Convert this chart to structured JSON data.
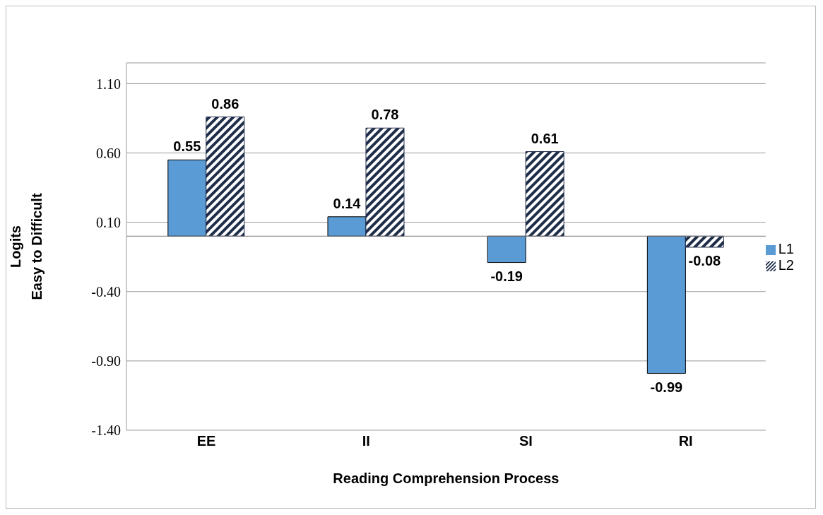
{
  "chart_data": {
    "type": "bar",
    "xlabel": "Reading Comprehension Process",
    "ylabel": "Logits\nEasy to Difficult",
    "categories": [
      "EE",
      "II",
      "SI",
      "RI"
    ],
    "series": [
      {
        "name": "L1",
        "color": "#5b9bd5",
        "values": [
          0.55,
          0.14,
          -0.19,
          -0.99
        ]
      },
      {
        "name": "L2",
        "color": "#1f2d4a",
        "values": [
          0.86,
          0.78,
          0.61,
          -0.08
        ]
      }
    ],
    "ylim": [
      -1.4,
      1.25
    ],
    "yticks": [
      {
        "value": -1.4,
        "label": "-1.40"
      },
      {
        "value": -0.9,
        "label": "-0.90"
      },
      {
        "value": -0.4,
        "label": "-0.40"
      },
      {
        "value": 0.1,
        "label": "0.10"
      },
      {
        "value": 0.6,
        "label": "0.60"
      },
      {
        "value": 1.1,
        "label": "1.10"
      }
    ],
    "grid": "y",
    "legend": "right",
    "data_labels": true
  }
}
